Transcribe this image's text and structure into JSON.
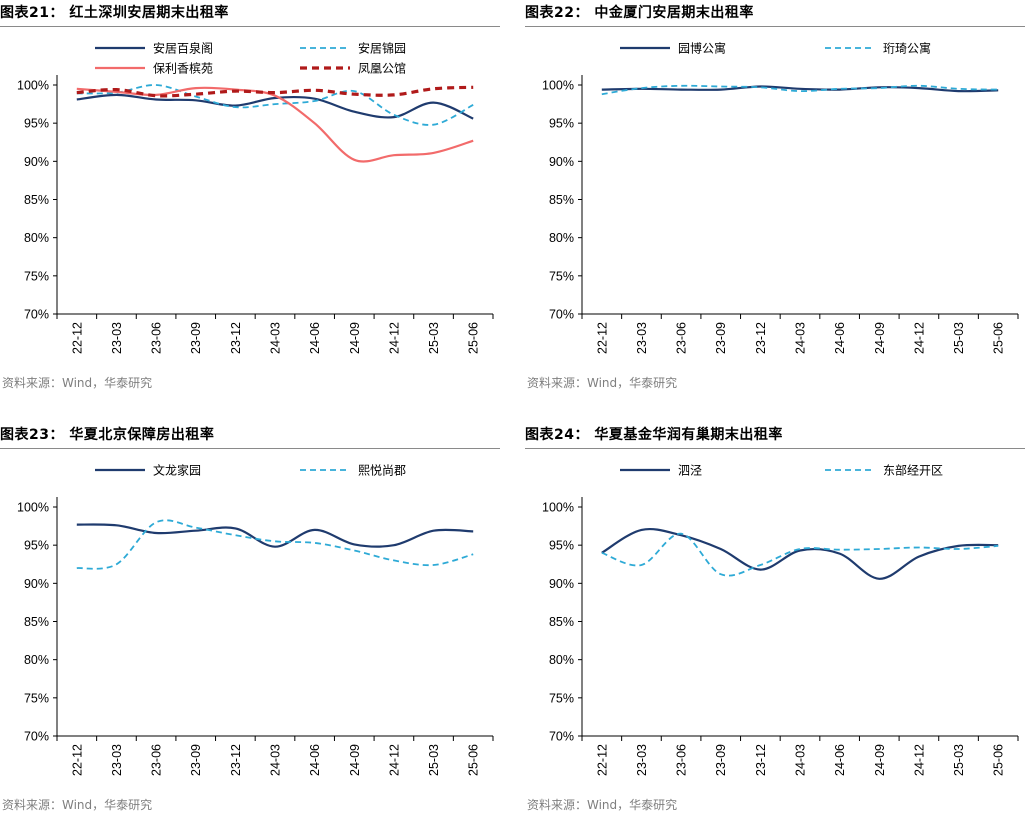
{
  "colors": {
    "navy": "#1f3b6e",
    "cyan": "#2eaad6",
    "salmon": "#f26b6b",
    "crimson": "#b01a1a"
  },
  "chart_data": [
    {
      "type": "line",
      "title": "图表21：  红土深圳安居期末出租率",
      "source": "资料来源：Wind，华泰研究",
      "categories": [
        "22-12",
        "23-03",
        "23-06",
        "23-09",
        "23-12",
        "24-03",
        "24-06",
        "24-09",
        "24-12",
        "25-03",
        "25-06"
      ],
      "yticks": [
        "70%",
        "75%",
        "80%",
        "85%",
        "90%",
        "95%",
        "100%"
      ],
      "ylim": [
        70,
        100
      ],
      "legend_columns": 2,
      "series": [
        {
          "name": "安居百泉阁",
          "style": "solid",
          "color": "navy",
          "values": [
            98.1,
            98.7,
            98.1,
            98.0,
            97.3,
            98.3,
            98.2,
            96.5,
            95.8,
            97.7,
            95.6
          ]
        },
        {
          "name": "安居锦园",
          "style": "dashed",
          "color": "cyan",
          "values": [
            98.9,
            99.0,
            100.0,
            98.5,
            97.1,
            97.5,
            97.9,
            99.2,
            96.1,
            94.8,
            97.4
          ]
        },
        {
          "name": "保利香槟苑",
          "style": "solid",
          "color": "salmon",
          "values": [
            99.5,
            99.1,
            98.7,
            99.6,
            99.4,
            98.6,
            95.0,
            90.2,
            90.8,
            91.1,
            92.7
          ]
        },
        {
          "name": "凤凰公馆",
          "style": "dashed-thick",
          "color": "crimson",
          "values": [
            99.0,
            99.4,
            98.6,
            98.8,
            99.2,
            99.0,
            99.3,
            98.8,
            98.7,
            99.5,
            99.7
          ]
        }
      ]
    },
    {
      "type": "line",
      "title": "图表22：  中金厦门安居期末出租率",
      "source": "资料来源：Wind，华泰研究",
      "categories": [
        "22-12",
        "23-03",
        "23-06",
        "23-09",
        "23-12",
        "24-03",
        "24-06",
        "24-09",
        "24-12",
        "25-03",
        "25-06"
      ],
      "yticks": [
        "70%",
        "75%",
        "80%",
        "85%",
        "90%",
        "95%",
        "100%"
      ],
      "ylim": [
        70,
        100
      ],
      "legend_columns": 2,
      "series": [
        {
          "name": "园博公寓",
          "style": "solid",
          "color": "navy",
          "values": [
            99.4,
            99.5,
            99.4,
            99.4,
            99.8,
            99.5,
            99.4,
            99.7,
            99.6,
            99.2,
            99.3
          ]
        },
        {
          "name": "珩琦公寓",
          "style": "dashed",
          "color": "cyan",
          "values": [
            98.8,
            99.6,
            99.9,
            99.8,
            99.7,
            99.2,
            99.5,
            99.6,
            99.9,
            99.5,
            99.4
          ]
        }
      ]
    },
    {
      "type": "line",
      "title": "图表23：  华夏北京保障房出租率",
      "source": "资料来源：Wind，华泰研究",
      "categories": [
        "22-12",
        "23-03",
        "23-06",
        "23-09",
        "23-12",
        "24-03",
        "24-06",
        "24-09",
        "24-12",
        "25-03",
        "25-06"
      ],
      "yticks": [
        "70%",
        "75%",
        "80%",
        "85%",
        "90%",
        "95%",
        "100%"
      ],
      "ylim": [
        70,
        100
      ],
      "legend_columns": 2,
      "series": [
        {
          "name": "文龙家园",
          "style": "solid",
          "color": "navy",
          "values": [
            97.7,
            97.6,
            96.6,
            96.9,
            97.2,
            94.8,
            97.0,
            95.1,
            95.0,
            96.9,
            96.8
          ]
        },
        {
          "name": "熙悦尚郡",
          "style": "dashed",
          "color": "cyan",
          "values": [
            92.0,
            92.5,
            98.0,
            97.3,
            96.3,
            95.5,
            95.3,
            94.3,
            93.0,
            92.4,
            93.8
          ]
        }
      ]
    },
    {
      "type": "line",
      "title": "图表24：  华夏基金华润有巢期末出租率",
      "source": "资料来源：Wind，华泰研究",
      "categories": [
        "22-12",
        "23-03",
        "23-06",
        "23-09",
        "23-12",
        "24-03",
        "24-06",
        "24-09",
        "24-12",
        "25-03",
        "25-06"
      ],
      "yticks": [
        "70%",
        "75%",
        "80%",
        "85%",
        "90%",
        "95%",
        "100%"
      ],
      "ylim": [
        70,
        100
      ],
      "legend_columns": 2,
      "series": [
        {
          "name": "泗泾",
          "style": "solid",
          "color": "navy",
          "values": [
            94.0,
            97.0,
            96.3,
            94.5,
            91.8,
            94.3,
            93.9,
            90.6,
            93.5,
            94.9,
            95.0
          ]
        },
        {
          "name": "东部经开区",
          "style": "dashed",
          "color": "cyan",
          "values": [
            94.0,
            92.4,
            96.5,
            91.2,
            92.4,
            94.5,
            94.4,
            94.5,
            94.7,
            94.5,
            94.9
          ]
        }
      ]
    }
  ]
}
